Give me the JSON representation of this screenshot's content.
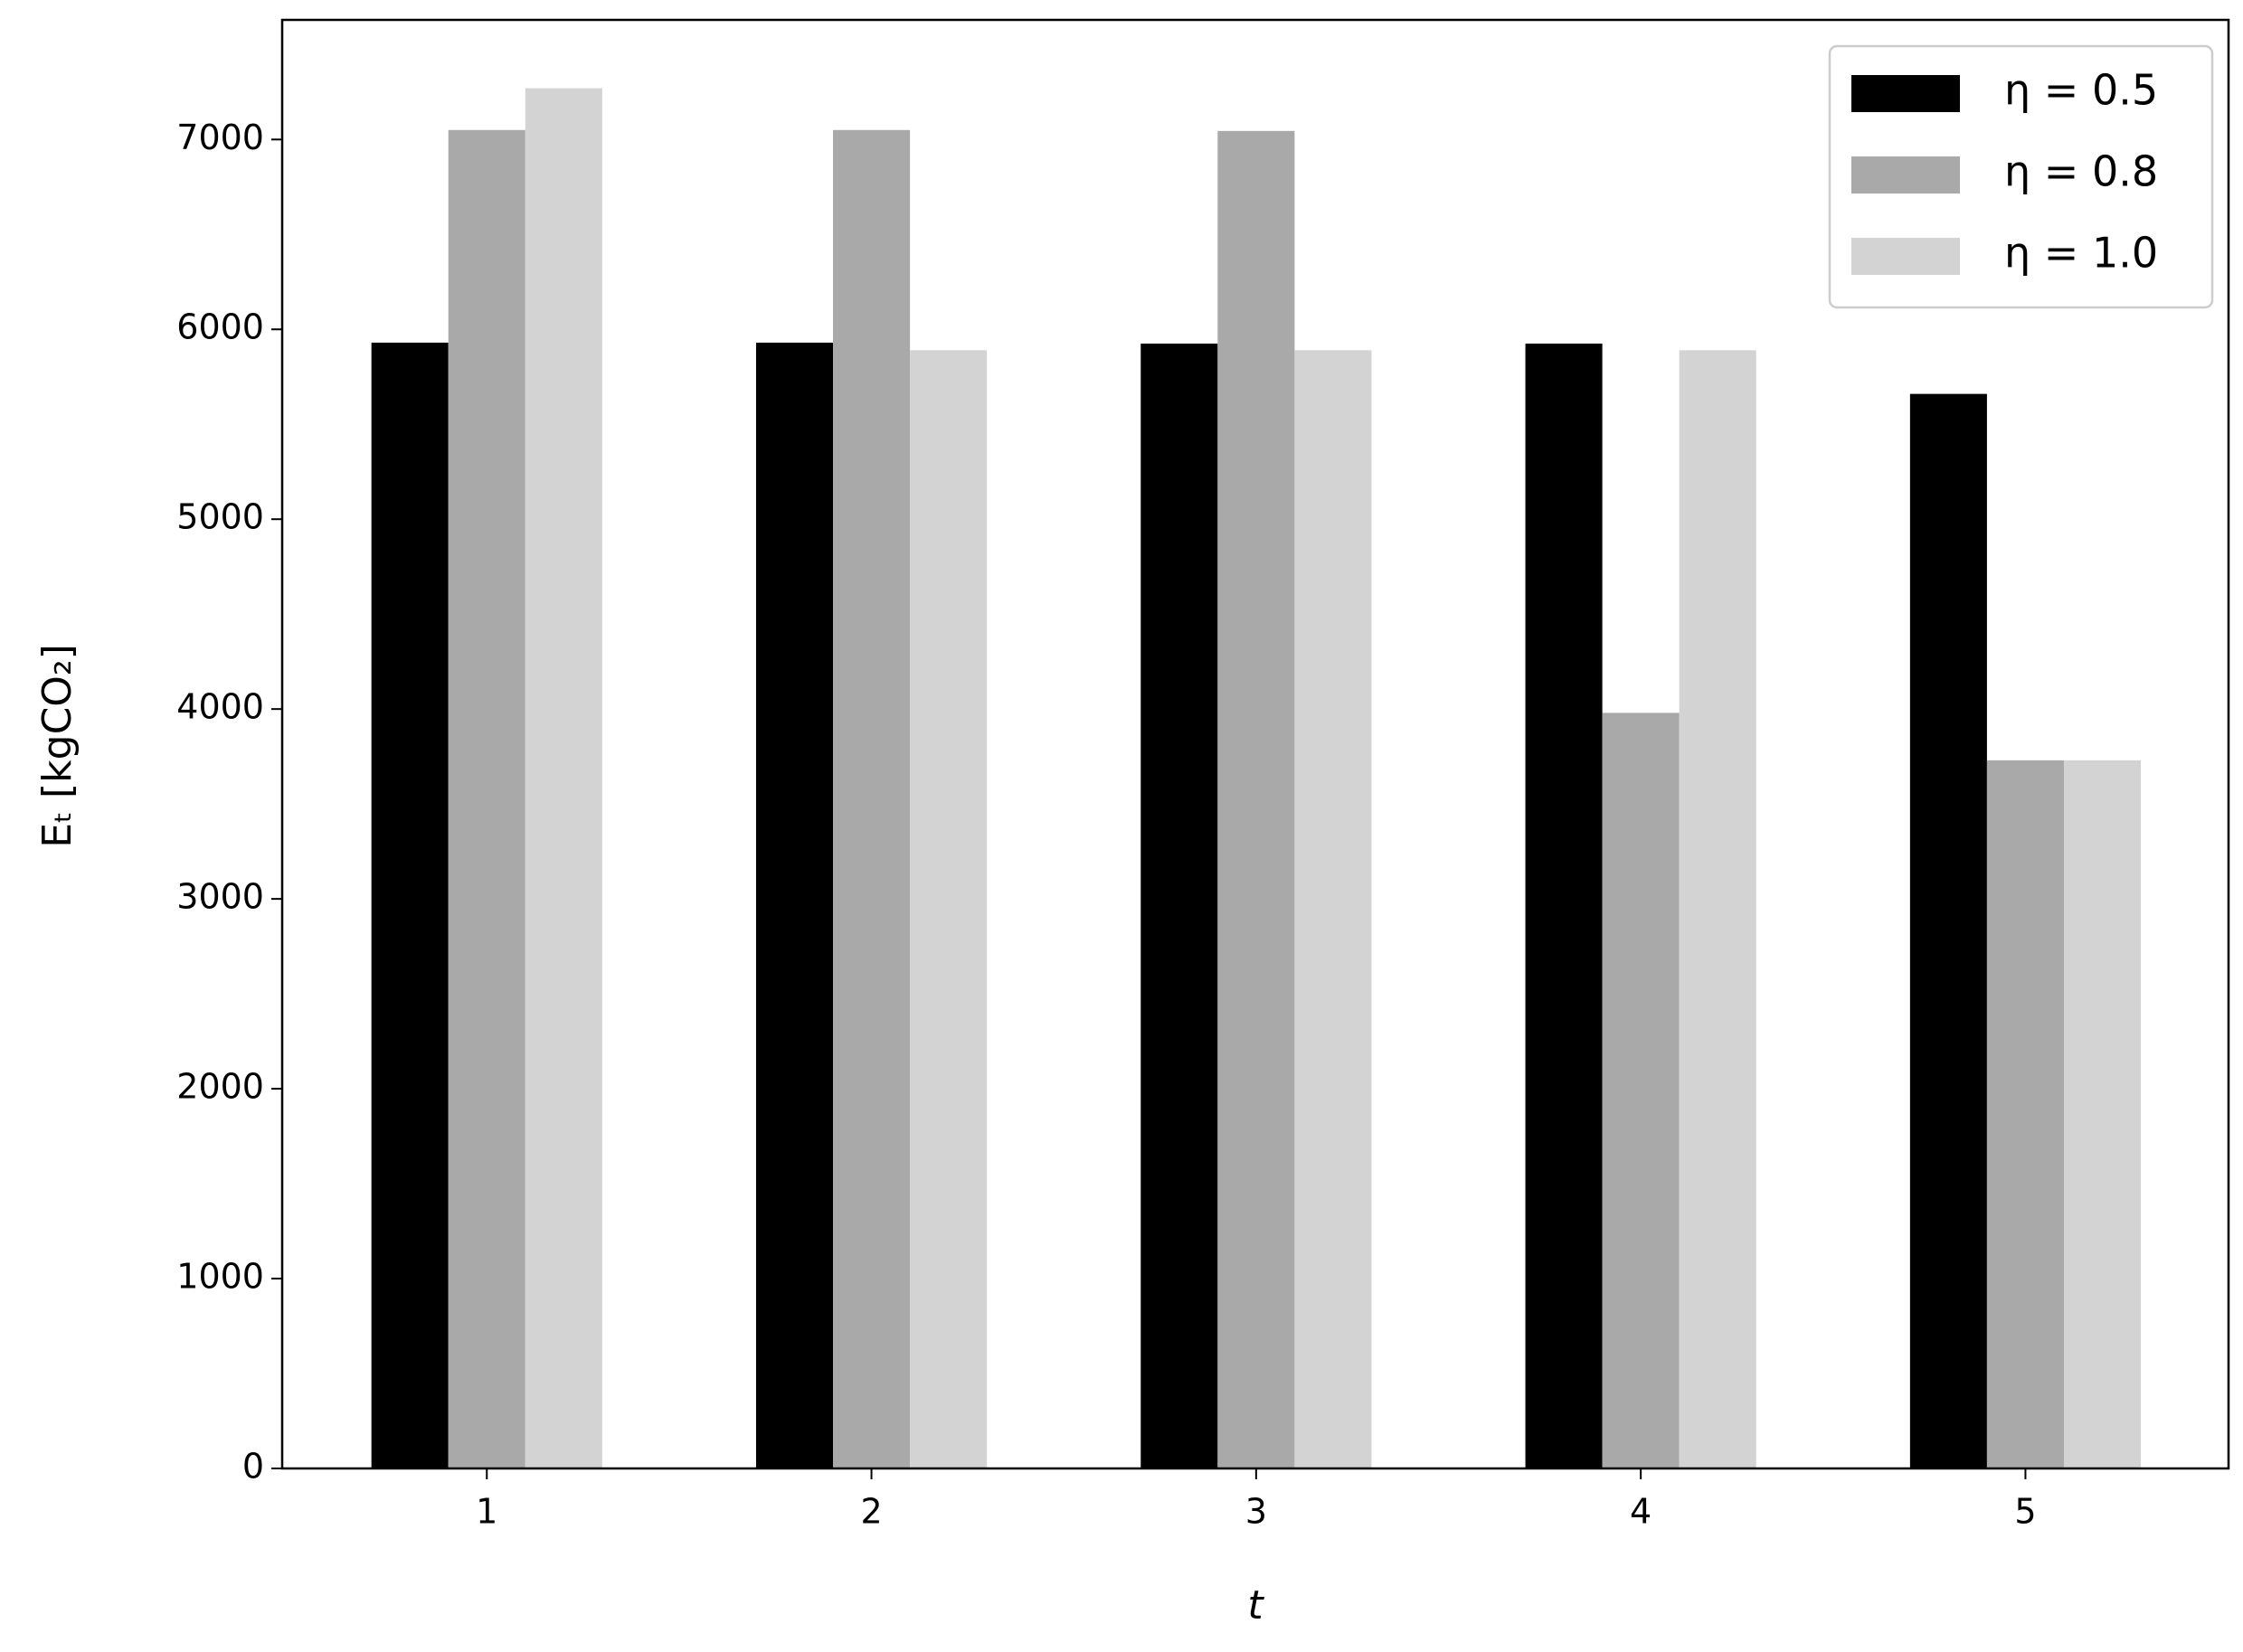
{
  "chart_data": {
    "type": "bar",
    "xlabel": "t",
    "ylabel": "Eₜ [kgCO₂]",
    "categories": [
      "1",
      "2",
      "3",
      "4",
      "5"
    ],
    "series": [
      {
        "name": "η = 0.5",
        "color": "#000000",
        "values": [
          5930,
          5930,
          5925,
          5925,
          5660
        ]
      },
      {
        "name": "η = 0.8",
        "color": "#a9a9a9",
        "values": [
          7050,
          7050,
          7045,
          3980,
          3730
        ]
      },
      {
        "name": "η = 1.0",
        "color": "#d3d3d3",
        "values": [
          7270,
          5890,
          5890,
          5890,
          3730
        ]
      }
    ],
    "ylim": [
      0,
      7630
    ],
    "yticks": [
      0,
      1000,
      2000,
      3000,
      4000,
      5000,
      6000,
      7000
    ],
    "grid": false,
    "legend": "upper right"
  }
}
